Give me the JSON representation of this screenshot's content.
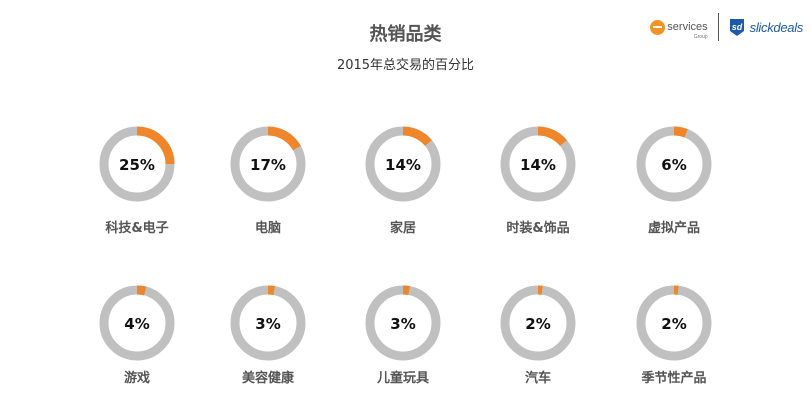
{
  "header": {
    "title": "热销品类",
    "subtitle": "2015年总交易的百分比"
  },
  "logos": {
    "eservices_text": "services",
    "eservices_sub": "Group",
    "slickdeals_text": "slickdeals",
    "slickdeals_icon_text": "sd"
  },
  "colors": {
    "accent": "#f0862a",
    "track": "#c0c0c0",
    "brand_blue": "#1e5aa8"
  },
  "chart_data": {
    "type": "pie",
    "variant": "donut-grid",
    "title": "热销品类",
    "subtitle": "2015年总交易的百分比",
    "categories": [
      "科技&电子",
      "电脑",
      "家居",
      "时装&饰品",
      "虚拟产品",
      "游戏",
      "美容健康",
      "儿童玩具",
      "汽车",
      "季节性产品"
    ],
    "values": [
      25,
      17,
      14,
      14,
      6,
      4,
      3,
      3,
      2,
      2
    ],
    "labels": [
      "25%",
      "17%",
      "14%",
      "14%",
      "6%",
      "4%",
      "3%",
      "3%",
      "2%",
      "2%"
    ],
    "unit": "%"
  }
}
